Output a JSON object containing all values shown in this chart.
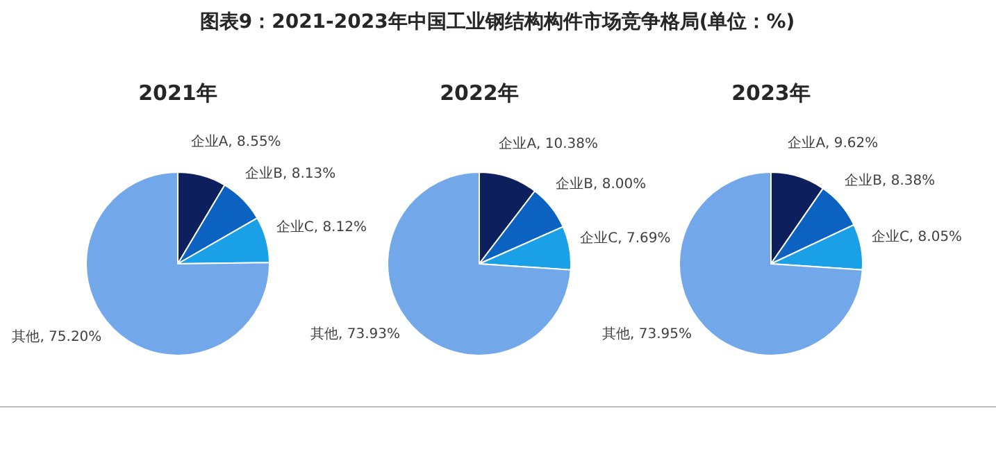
{
  "chart_data": [
    {
      "type": "pie",
      "title": "2021年",
      "annotations": [
        "图表9：2021-2023年中国工业钢结构构件市场竞争格局(单位：%)"
      ],
      "categories": [
        "企业A",
        "企业B",
        "企业C",
        "其他"
      ],
      "values": [
        8.55,
        8.13,
        8.12,
        75.2
      ],
      "value_labels": [
        "8.55%",
        "8.13%",
        "8.12%",
        "75.20%"
      ],
      "colors": [
        "#0d1f5c",
        "#0b62c0",
        "#19a0e6",
        "#72a7ea"
      ]
    },
    {
      "type": "pie",
      "title": "2022年",
      "categories": [
        "企业A",
        "企业B",
        "企业C",
        "其他"
      ],
      "values": [
        10.38,
        8.0,
        7.69,
        73.93
      ],
      "value_labels": [
        "10.38%",
        "8.00%",
        "7.69%",
        "73.93%"
      ],
      "colors": [
        "#0d1f5c",
        "#0b62c0",
        "#19a0e6",
        "#72a7ea"
      ]
    },
    {
      "type": "pie",
      "title": "2023年",
      "categories": [
        "企业A",
        "企业B",
        "企业C",
        "其他"
      ],
      "values": [
        9.62,
        8.38,
        8.05,
        73.95
      ],
      "value_labels": [
        "9.62%",
        "8.38%",
        "8.05%",
        "73.95%"
      ],
      "colors": [
        "#0d1f5c",
        "#0b62c0",
        "#19a0e6",
        "#72a7ea"
      ]
    }
  ]
}
